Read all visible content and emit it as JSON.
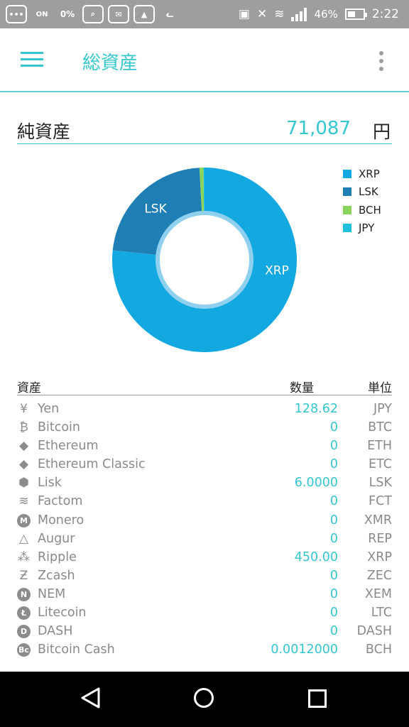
{
  "statusbar": {
    "battery": "46%",
    "time": "2:22",
    "data_saver": "0%",
    "on_label": "ON"
  },
  "appbar": {
    "title": "総資産"
  },
  "networth": {
    "label": "純資産",
    "value": "71,087",
    "unit": "円"
  },
  "chart_data": {
    "type": "pie",
    "donut": true,
    "slices": [
      {
        "label": "XRP",
        "value": 76.8,
        "color": "#14a8e0"
      },
      {
        "label": "LSK",
        "value": 22.5,
        "color": "#1f7fb5"
      },
      {
        "label": "BCH",
        "value": 0.7,
        "color": "#8bd45c"
      },
      {
        "label": "JPY",
        "value": 0.18,
        "color": "#1ec0dc"
      }
    ],
    "slice_labels_shown": [
      "XRP",
      "LSK"
    ],
    "legend_position": "top-right"
  },
  "legend": [
    {
      "label": "XRP",
      "color": "#14a8e0"
    },
    {
      "label": "LSK",
      "color": "#1f7fb5"
    },
    {
      "label": "BCH",
      "color": "#8bd45c"
    },
    {
      "label": "JPY",
      "color": "#1ec0dc"
    }
  ],
  "table": {
    "headers": {
      "asset": "資産",
      "quantity": "数量",
      "unit": "単位"
    },
    "rows": [
      {
        "icon": "yen-icon",
        "glyph": "¥",
        "name": "Yen",
        "qty": "128.62",
        "unit": "JPY"
      },
      {
        "icon": "bitcoin-icon",
        "glyph": "₿",
        "name": "Bitcoin",
        "qty": "0",
        "unit": "BTC"
      },
      {
        "icon": "ethereum-icon",
        "glyph": "◆",
        "name": "Ethereum",
        "qty": "0",
        "unit": "ETH"
      },
      {
        "icon": "ethereum-classic-icon",
        "glyph": "◆",
        "name": "Ethereum Classic",
        "qty": "0",
        "unit": "ETC"
      },
      {
        "icon": "lisk-icon",
        "glyph": "⬢",
        "name": "Lisk",
        "qty": "6.0000",
        "unit": "LSK"
      },
      {
        "icon": "factom-icon",
        "glyph": "≋",
        "name": "Factom",
        "qty": "0",
        "unit": "FCT"
      },
      {
        "icon": "monero-icon",
        "glyph": "M",
        "name": "Monero",
        "qty": "0",
        "unit": "XMR"
      },
      {
        "icon": "augur-icon",
        "glyph": "△",
        "name": "Augur",
        "qty": "0",
        "unit": "REP"
      },
      {
        "icon": "ripple-icon",
        "glyph": "⁂",
        "name": "Ripple",
        "qty": "450.00",
        "unit": "XRP"
      },
      {
        "icon": "zcash-icon",
        "glyph": "Ƶ",
        "name": "Zcash",
        "qty": "0",
        "unit": "ZEC"
      },
      {
        "icon": "nem-icon",
        "glyph": "N",
        "name": "NEM",
        "qty": "0",
        "unit": "XEM"
      },
      {
        "icon": "litecoin-icon",
        "glyph": "Ł",
        "name": "Litecoin",
        "qty": "0",
        "unit": "LTC"
      },
      {
        "icon": "dash-icon",
        "glyph": "D",
        "name": "DASH",
        "qty": "0",
        "unit": "DASH"
      },
      {
        "icon": "bitcoin-cash-icon",
        "glyph": "Bc",
        "name": "Bitcoin Cash",
        "qty": "0.0012000",
        "unit": "BCH"
      }
    ]
  }
}
